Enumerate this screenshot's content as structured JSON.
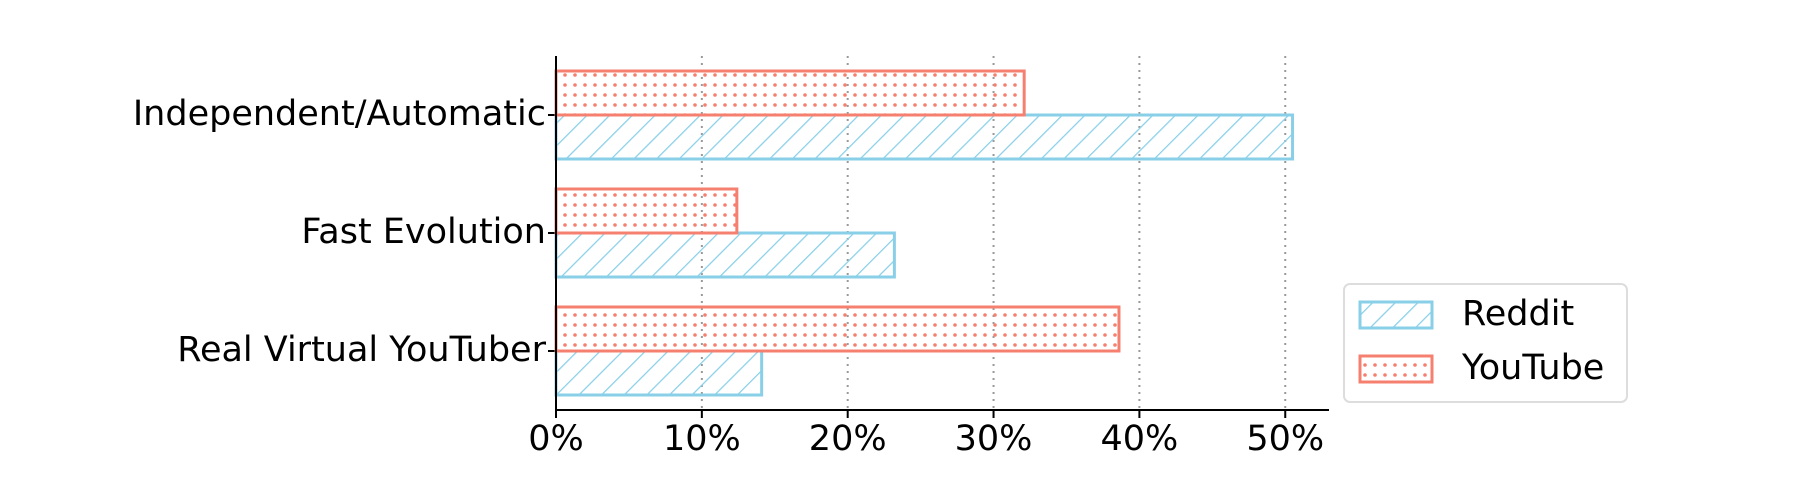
{
  "chart_data": {
    "type": "hbar",
    "categories": [
      "Independent/Automatic",
      "Fast Evolution",
      "Real Virtual YouTuber"
    ],
    "series": [
      {
        "name": "Reddit",
        "color": "#89cfe8",
        "pattern": "hatch",
        "values": [
          50.5,
          23.2,
          14.1
        ]
      },
      {
        "name": "YouTube",
        "color": "#f5806f",
        "pattern": "dots",
        "values": [
          32.1,
          12.4,
          38.6
        ]
      }
    ],
    "xlim": [
      0,
      53
    ],
    "xticks": [
      {
        "value": 0,
        "label": "0%"
      },
      {
        "value": 10,
        "label": "10%"
      },
      {
        "value": 20,
        "label": "20%"
      },
      {
        "value": 30,
        "label": "30%"
      },
      {
        "value": 40,
        "label": "40%"
      },
      {
        "value": 50,
        "label": "50%"
      }
    ],
    "grid": true,
    "legend": "lower right"
  }
}
